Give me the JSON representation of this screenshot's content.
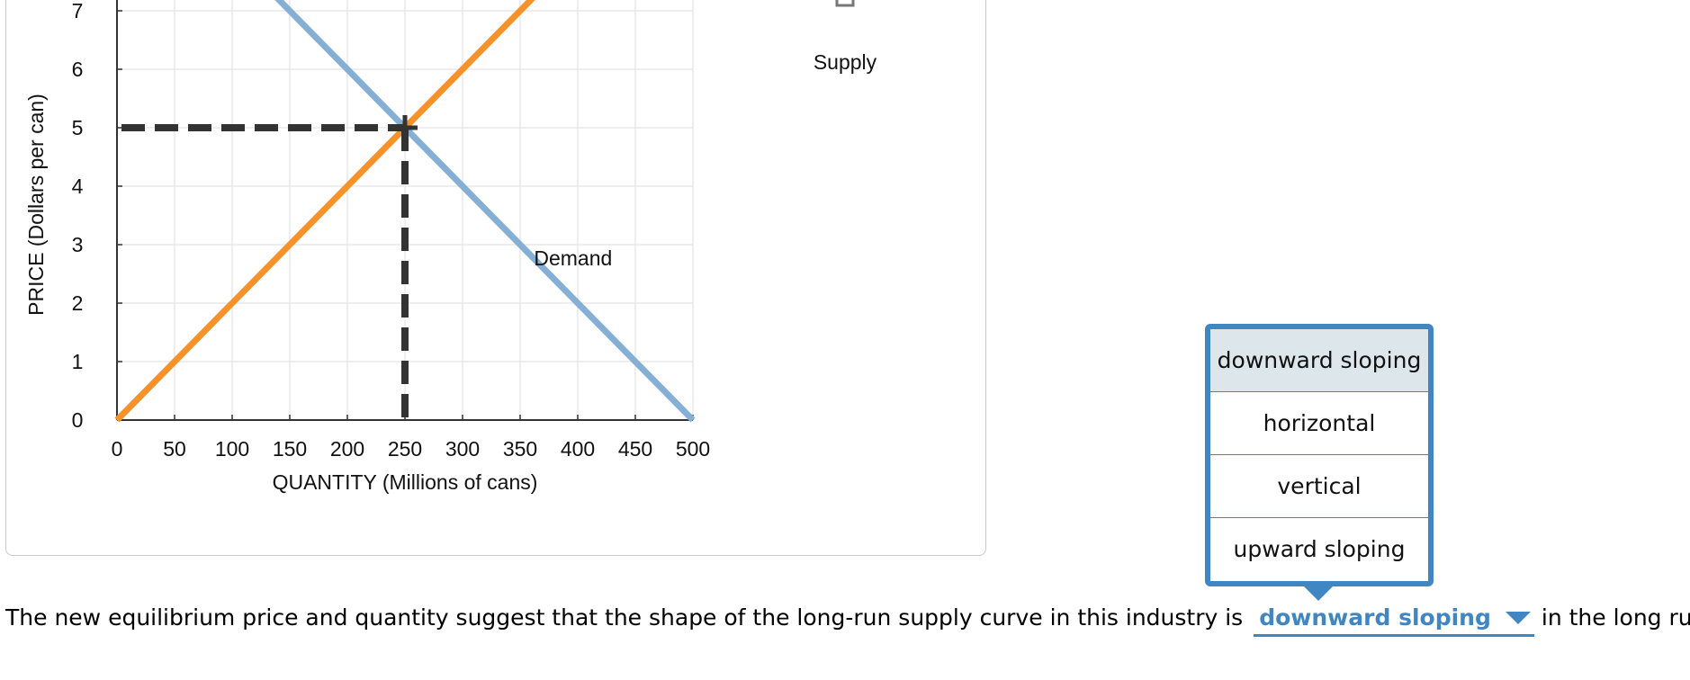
{
  "chart_data": {
    "type": "line",
    "xlabel": "QUANTITY (Millions of cans)",
    "ylabel": "PRICE (Dollars per can)",
    "xlim": [
      0,
      500
    ],
    "ylim": [
      0,
      7
    ],
    "x_ticks": [
      "0",
      "50",
      "100",
      "150",
      "200",
      "250",
      "300",
      "350",
      "400",
      "450",
      "500"
    ],
    "y_ticks": [
      "0",
      "1",
      "2",
      "3",
      "4",
      "5",
      "6",
      "7"
    ],
    "grid": true,
    "series": [
      {
        "name": "Supply",
        "color": "#f7922b",
        "points": [
          [
            0,
            0
          ],
          [
            250,
            5
          ],
          [
            362,
            7.24
          ]
        ]
      },
      {
        "name": "Demand",
        "color": "#85afd4",
        "points": [
          [
            138,
            7.24
          ],
          [
            250,
            5
          ],
          [
            500,
            0
          ]
        ]
      }
    ],
    "equilibrium": {
      "x": 250,
      "y": 5
    },
    "labels": {
      "demand": "Demand",
      "supply_legend": "Supply"
    }
  },
  "question": {
    "before": "The new equilibrium price and quantity suggest that the shape of the long-run supply curve in this industry is",
    "selected": "downward sloping",
    "after": "in the long run."
  },
  "dropdown": {
    "options": [
      "downward sloping",
      "horizontal",
      "vertical",
      "upward sloping"
    ],
    "highlighted_index": 0
  }
}
